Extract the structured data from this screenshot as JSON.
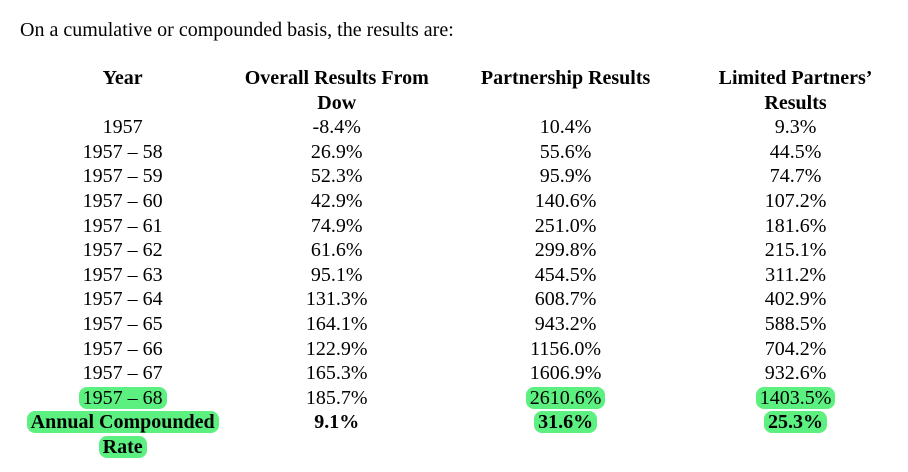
{
  "intro": "On a cumulative or compounded basis, the results are:",
  "headers": [
    [
      "Year",
      ""
    ],
    [
      "Overall Results From",
      "Dow"
    ],
    [
      "Partnership Results",
      ""
    ],
    [
      "Limited Partners’",
      "Results"
    ]
  ],
  "rows": [
    [
      "1957",
      "-8.4%",
      "10.4%",
      "9.3%"
    ],
    [
      "1957 – 58",
      "26.9%",
      "55.6%",
      "44.5%"
    ],
    [
      "1957 – 59",
      "52.3%",
      "95.9%",
      "74.7%"
    ],
    [
      "1957 – 60",
      "42.9%",
      "140.6%",
      "107.2%"
    ],
    [
      "1957 – 61",
      "74.9%",
      "251.0%",
      "181.6%"
    ],
    [
      "1957 – 62",
      "61.6%",
      "299.8%",
      "215.1%"
    ],
    [
      "1957 – 63",
      "95.1%",
      "454.5%",
      "311.2%"
    ],
    [
      "1957 – 64",
      "131.3%",
      "608.7%",
      "402.9%"
    ],
    [
      "1957 – 65",
      "164.1%",
      "943.2%",
      "588.5%"
    ],
    [
      "1957 – 66",
      "122.9%",
      "1156.0%",
      "704.2%"
    ],
    [
      "1957 – 67",
      "165.3%",
      "1606.9%",
      "932.6%"
    ],
    [
      "1957 – 68",
      "185.7%",
      "2610.6%",
      "1403.5%"
    ]
  ],
  "annual": {
    "label_line1": "Annual Compounded",
    "label_line2": "Rate",
    "dow": "9.1%",
    "partnership": "31.6%",
    "limited": "25.3%"
  },
  "highlight_color": "#5cf080"
}
